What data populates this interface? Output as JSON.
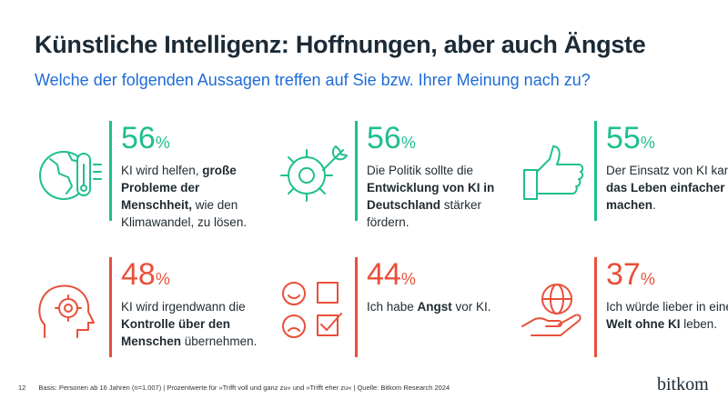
{
  "title": "Künstliche Intelligenz: Hoffnungen, aber auch Ängste",
  "subtitle": "Welche der folgenden Aussagen treffen auf Sie bzw. Ihrer Meinung nach zu?",
  "colors": {
    "green": "#1fbf8f",
    "red": "#e8503a",
    "title": "#1b2a36",
    "subtitle": "#1e6bd6"
  },
  "items": [
    {
      "value": "56",
      "unit": "%",
      "color": "green",
      "icon": "globe-thermometer-icon",
      "parts": [
        {
          "t": "KI wird helfen, ",
          "b": false
        },
        {
          "t": "große Probleme der Menschheit,",
          "b": true
        },
        {
          "t": " wie den Klimawandel, zu lösen.",
          "b": false
        }
      ]
    },
    {
      "value": "56",
      "unit": "%",
      "color": "green",
      "icon": "gear-wrench-icon",
      "parts": [
        {
          "t": "Die Politik sollte die ",
          "b": false
        },
        {
          "t": "Entwicklung von KI in Deutschland",
          "b": true
        },
        {
          "t": " stärker fördern.",
          "b": false
        }
      ]
    },
    {
      "value": "55",
      "unit": "%",
      "color": "green",
      "icon": "thumbs-up-icon",
      "parts": [
        {
          "t": "Der Einsatz von KI kann ",
          "b": false
        },
        {
          "t": "das Leben einfacher machen",
          "b": true
        },
        {
          "t": ".",
          "b": false
        }
      ]
    },
    {
      "value": "48",
      "unit": "%",
      "color": "red",
      "icon": "head-gear-icon",
      "parts": [
        {
          "t": "KI wird irgendwann die ",
          "b": false
        },
        {
          "t": "Kontrolle über den Menschen",
          "b": true
        },
        {
          "t": " übernehmen.",
          "b": false
        }
      ]
    },
    {
      "value": "44",
      "unit": "%",
      "color": "red",
      "icon": "smiley-checkbox-icon",
      "parts": [
        {
          "t": "Ich habe ",
          "b": false
        },
        {
          "t": "Angst",
          "b": true
        },
        {
          "t": " vor KI.",
          "b": false
        }
      ]
    },
    {
      "value": "37",
      "unit": "%",
      "color": "red",
      "icon": "hand-globe-icon",
      "parts": [
        {
          "t": "Ich würde lieber in einer ",
          "b": false
        },
        {
          "t": "Welt ohne KI",
          "b": true
        },
        {
          "t": " leben.",
          "b": false
        }
      ]
    }
  ],
  "footer": {
    "page": "12",
    "note": "Basis: Personen ab 16 Jahren (n=1.007) | Prozentwerte für »Trifft voll und ganz zu« und »Trifft eher zu« | Quelle: Bitkom Research 2024"
  },
  "logo": "bitkom"
}
